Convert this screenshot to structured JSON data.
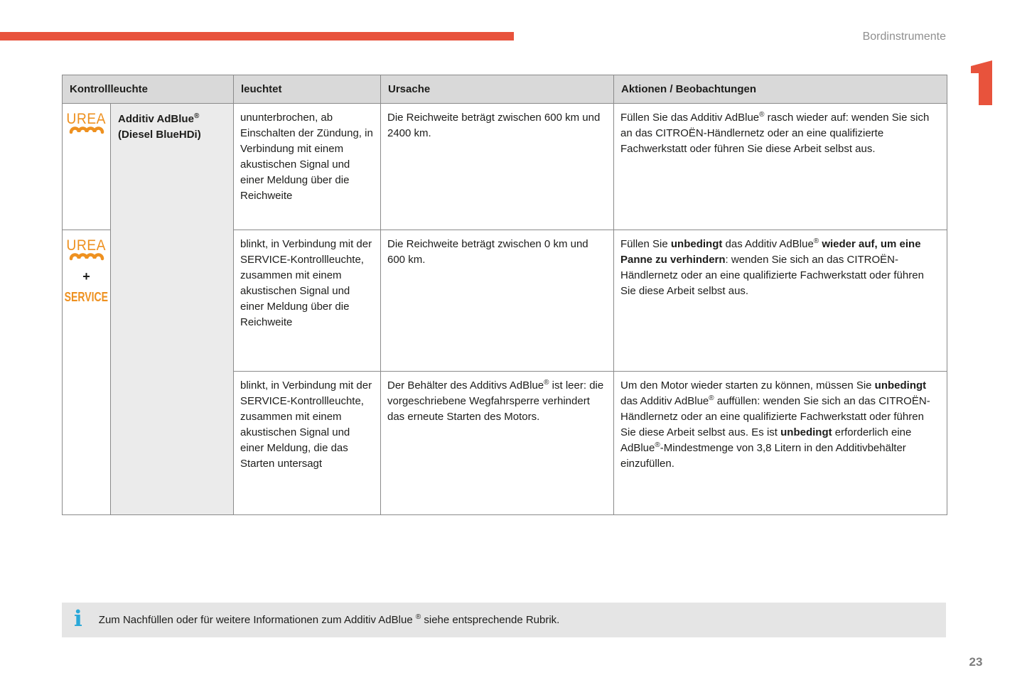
{
  "page": {
    "section_title": "Bordinstrumente",
    "chapter_number": "1",
    "page_number": "23"
  },
  "colors": {
    "accent_red": "#e8533c",
    "icon_orange": "#ee9120",
    "info_blue": "#2aa8d8",
    "header_bg": "#d9d9d9",
    "name_cell_bg": "#ebebeb",
    "info_bar_bg": "#e5e5e5",
    "table_border": "#8a8a8a"
  },
  "table": {
    "headers": {
      "kontrollleuchte": "Kontrollleuchte",
      "leuchtet": "leuchtet",
      "ursache": "Ursache",
      "aktionen": "Aktionen / Beobachtungen"
    },
    "icons": {
      "urea_label": "UREA",
      "plus": "+",
      "service_label": "SERVICE"
    },
    "indicator_name": [
      {
        "t": "Additiv AdBlue",
        "b": true
      },
      {
        "t": "®",
        "b": true,
        "sup": true
      },
      {
        "t": " ",
        "b": true
      },
      {
        "t": "(Diesel BlueHDi)",
        "b": true
      }
    ],
    "rows": [
      {
        "leuchtet": [
          {
            "t": "ununterbrochen, ab Einschalten der Zündung, in Verbindung mit einem akustischen Signal und einer Meldung über die Reichweite"
          }
        ],
        "ursache": [
          {
            "t": "Die Reichweite beträgt zwischen 600 km und 2400 km."
          }
        ],
        "aktionen": [
          {
            "t": "Füllen Sie das Additiv AdBlue"
          },
          {
            "t": "®",
            "sup": true
          },
          {
            "t": " rasch wieder auf: wenden Sie sich an das CITROËN-Händlernetz oder an eine qualifizierte Fachwerkstatt oder führen Sie diese Arbeit selbst aus."
          }
        ]
      },
      {
        "leuchtet": [
          {
            "t": "blinkt, in Verbindung mit der SERVICE-Kontrollleuchte, zusammen mit einem akustischen Signal und einer Meldung über die Reichweite"
          }
        ],
        "ursache": [
          {
            "t": "Die Reichweite beträgt zwischen 0 km und 600 km."
          }
        ],
        "aktionen": [
          {
            "t": "Füllen Sie "
          },
          {
            "t": "unbedingt",
            "b": true
          },
          {
            "t": " das Additiv AdBlue"
          },
          {
            "t": "®",
            "sup": true
          },
          {
            "t": " "
          },
          {
            "t": "wieder auf, um eine Panne zu verhindern",
            "b": true
          },
          {
            "t": ": wenden Sie sich an das CITROËN-Händlernetz oder an eine qualifizierte Fachwerkstatt oder führen Sie diese Arbeit selbst aus."
          }
        ]
      },
      {
        "leuchtet": [
          {
            "t": "blinkt, in Verbindung mit der SERVICE-Kontrollleuchte, zusammen mit einem akustischen Signal und einer Meldung, die das Starten untersagt"
          }
        ],
        "ursache": [
          {
            "t": "Der Behälter des Additivs AdBlue"
          },
          {
            "t": "®",
            "sup": true
          },
          {
            "t": " ist leer: die vorgeschriebene Wegfahrsperre verhindert das erneute Starten des Motors."
          }
        ],
        "aktionen": [
          {
            "t": "Um den Motor wieder starten zu können, müssen Sie "
          },
          {
            "t": "unbedingt",
            "b": true
          },
          {
            "t": " das Additiv AdBlue"
          },
          {
            "t": "®",
            "sup": true
          },
          {
            "t": " auffüllen: wenden Sie sich an das CITROËN-Händlernetz oder an eine qualifizierte Fachwerkstatt oder führen Sie diese Arbeit selbst aus. Es ist "
          },
          {
            "t": "unbedingt",
            "b": true
          },
          {
            "t": " erforderlich eine AdBlue"
          },
          {
            "t": "®",
            "sup": true
          },
          {
            "t": "-Mindestmenge von 3,8 Litern in den Additivbehälter einzufüllen."
          }
        ]
      }
    ]
  },
  "info_note": [
    {
      "t": "Zum Nachfüllen oder für weitere Informationen zum Additiv AdBlue "
    },
    {
      "t": "®",
      "sup": true
    },
    {
      "t": " siehe entsprechende Rubrik."
    }
  ]
}
